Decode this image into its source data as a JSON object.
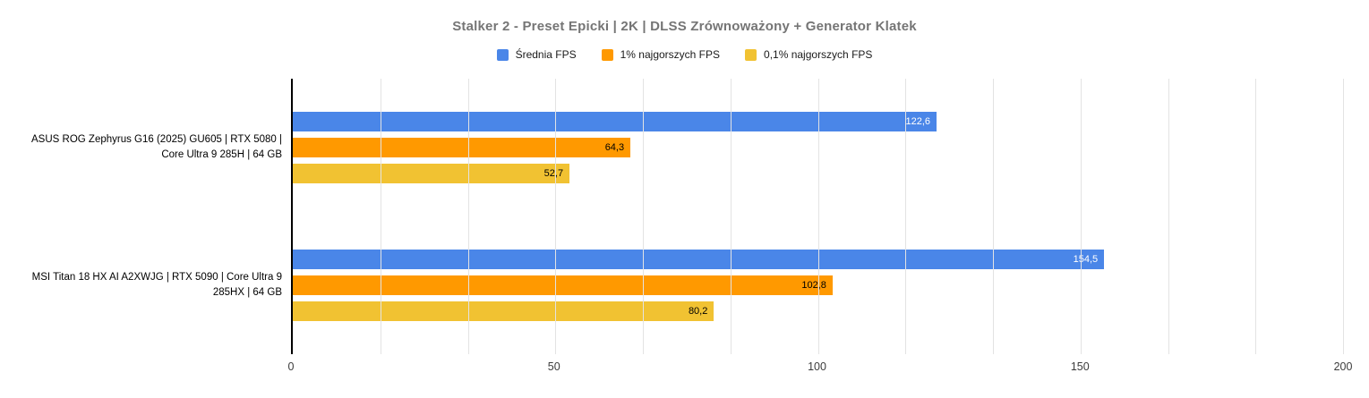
{
  "chart": {
    "title": "Stalker 2 - Preset Epicki | 2K | DLSS Zrównoważony + Generator Klatek"
  },
  "chart_data": {
    "type": "bar",
    "orientation": "horizontal",
    "title": "Stalker 2 - Preset Epicki | 2K | DLSS Zrównoważony + Generator Klatek",
    "categories": [
      "ASUS ROG Zephyrus G16 (2025) GU605 | RTX 5080 | Core Ultra 9 285H | 64 GB",
      "MSI Titan 18 HX AI A2XWJG | RTX 5090 | Core Ultra 9 285HX | 64 GB"
    ],
    "series": [
      {
        "name": "Średnia FPS",
        "color": "#4a86e8",
        "values": [
          122.6,
          154.5
        ],
        "value_labels": [
          "122,6",
          "154,5"
        ],
        "label_color": "#ffffff"
      },
      {
        "name": "1% najgorszych FPS",
        "color": "#ff9900",
        "values": [
          64.3,
          102.8
        ],
        "value_labels": [
          "64,3",
          "102,8"
        ],
        "label_color": "#000000"
      },
      {
        "name": "0,1% najgorszych FPS",
        "color": "#f1c232",
        "values": [
          52.7,
          80.2
        ],
        "value_labels": [
          "52,7",
          "80,2"
        ],
        "label_color": "#000000"
      }
    ],
    "x_axis": {
      "min": 0,
      "max": 200,
      "ticks": [
        0,
        50,
        100,
        150,
        200
      ],
      "tick_labels": [
        "0",
        "50",
        "100",
        "150",
        "200"
      ],
      "minor_per_major": 2
    },
    "grid": true,
    "legend_position": "top"
  }
}
